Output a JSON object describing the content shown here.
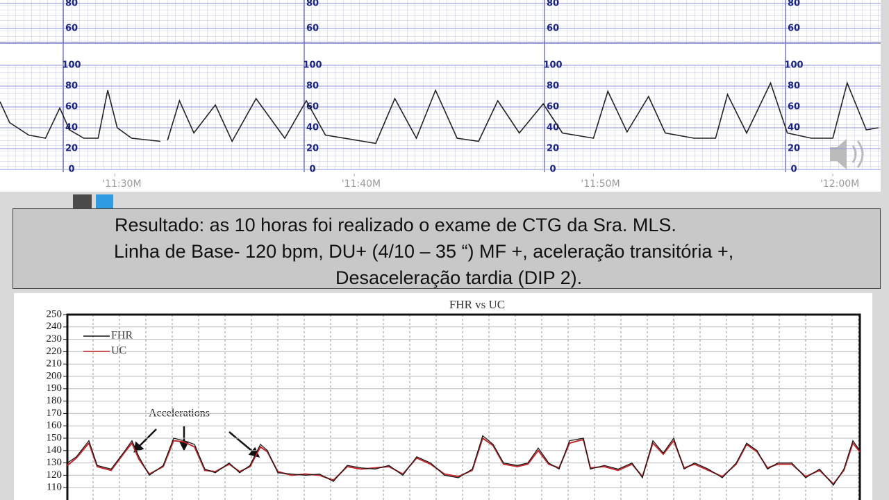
{
  "upper_strip": {
    "yticks": [
      80,
      60
    ]
  },
  "slide": {
    "text_lines": [
      "Resultado: as 10 horas foi realizado o exame de CTG da Sra. MLS.",
      "Linha de Base- 120 bpm, DU+ (4/10 – 35 “) MF +, aceleração transitória +,",
      "Desaceleração tardia (DIP 2)."
    ]
  },
  "chart_data": [
    {
      "type": "line",
      "x": [
        25.2,
        25.6,
        26.4,
        27.1,
        27.7,
        28.1,
        28.7,
        29.3,
        29.7,
        30.1,
        30.7,
        31.9,
        32.0,
        32.2,
        32.7,
        33.3,
        34.2,
        34.9,
        35.9,
        37.1,
        38.0,
        38.8,
        40.9,
        41.7,
        42.6,
        43.4,
        44.3,
        45.2,
        46.0,
        46.9,
        47.9,
        48.7,
        50.0,
        50.6,
        51.4,
        52.3,
        53.0,
        54.2,
        55.1,
        55.6,
        56.4,
        57.4,
        58.1,
        59.1,
        60.0,
        60.6,
        61.4,
        61.9
      ],
      "values": [
        65,
        45,
        33,
        30,
        59,
        38,
        30,
        30,
        76,
        40,
        30,
        27,
        null,
        28,
        66,
        35,
        62,
        27,
        68,
        30,
        66,
        33,
        25,
        68,
        30,
        76,
        30,
        27,
        66,
        35,
        63,
        35,
        30,
        75,
        36,
        70,
        35,
        30,
        30,
        72,
        35,
        83,
        35,
        30,
        30,
        83,
        38,
        40
      ],
      "color": "#222222",
      "xlim": [
        25.2,
        62.0
      ],
      "ylim": [
        0,
        100
      ],
      "yticks": [
        0,
        20,
        40,
        60,
        80,
        100
      ],
      "xticks": [
        {
          "value": 30,
          "label": "'11:30M"
        },
        {
          "value": 40,
          "label": "'11:40M"
        },
        {
          "value": 50,
          "label": "'11:50M"
        },
        {
          "value": 60,
          "label": "'12:00M"
        }
      ],
      "grid": true
    },
    {
      "type": "line",
      "title": "FHR vs UC",
      "annotation": "Accelerations",
      "x": [
        0,
        13,
        31,
        43,
        63,
        83,
        93,
        103,
        118,
        138,
        153,
        168,
        183,
        198,
        213,
        233,
        248,
        263,
        278,
        288,
        303,
        323,
        343,
        363,
        383,
        403,
        423,
        443,
        463,
        483,
        503,
        523,
        543,
        563,
        583,
        598,
        613,
        628,
        648,
        663,
        678,
        693,
        708,
        723,
        743,
        753,
        773,
        793,
        813,
        828,
        843,
        858,
        873,
        888,
        903,
        923,
        943,
        963,
        978,
        993,
        1008,
        1023,
        1043,
        1063,
        1083,
        1103,
        1118,
        1131,
        1141
      ],
      "series": [
        {
          "name": "FHR",
          "color": "#111111",
          "values": [
            130,
            135,
            148,
            128,
            125,
            140,
            148,
            135,
            120,
            128,
            150,
            148,
            145,
            125,
            122,
            130,
            122,
            128,
            145,
            140,
            122,
            121,
            120,
            121,
            115,
            128,
            126,
            125,
            128,
            120,
            135,
            130,
            120,
            118,
            125,
            152,
            145,
            130,
            128,
            130,
            142,
            130,
            125,
            148,
            150,
            125,
            128,
            125,
            130,
            118,
            148,
            138,
            150,
            125,
            130,
            125,
            118,
            130,
            146,
            140,
            125,
            130,
            130,
            118,
            125,
            112,
            125,
            148,
            140
          ]
        },
        {
          "name": "UC",
          "color": "#c0282d",
          "values": [
            128,
            134,
            146,
            127,
            124,
            139,
            146,
            133,
            121,
            127,
            148,
            147,
            143,
            124,
            123,
            129,
            123,
            127,
            143,
            139,
            123,
            120,
            121,
            120,
            116,
            127,
            125,
            126,
            127,
            121,
            134,
            129,
            121,
            119,
            124,
            150,
            144,
            129,
            127,
            129,
            140,
            129,
            126,
            146,
            149,
            126,
            127,
            124,
            129,
            119,
            146,
            137,
            148,
            126,
            129,
            124,
            119,
            129,
            145,
            139,
            126,
            129,
            129,
            119,
            124,
            113,
            124,
            146,
            139
          ]
        }
      ],
      "xlim": [
        0,
        1141
      ],
      "ylim": [
        100,
        250
      ],
      "yticks": [
        110,
        120,
        130,
        140,
        150,
        160,
        170,
        180,
        190,
        200,
        210,
        220,
        230,
        240,
        250
      ],
      "grid": true
    }
  ]
}
